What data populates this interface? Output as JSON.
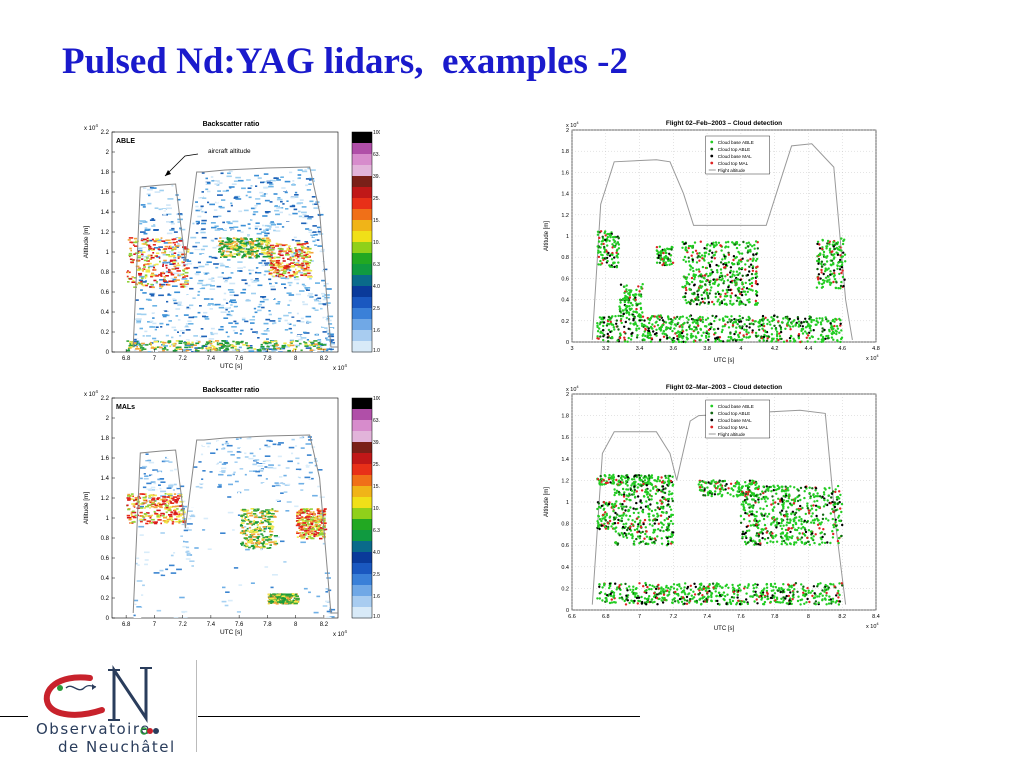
{
  "slide": {
    "title": "Pulsed Nd:YAG lidars,  examples -2"
  },
  "colors": {
    "title": "#1a1acc",
    "able_green": "#22cc22",
    "able_darkgreen": "#116611",
    "mal_black": "#000000",
    "mal_red": "#dd2222",
    "flight_altitude": "#999999"
  },
  "colorbar_ticks": [
    "100.0",
    "63.1",
    "39.8",
    "25.1",
    "15.8",
    "10.0",
    "6.3",
    "4.0",
    "2.5",
    "1.6",
    "1.0"
  ],
  "panel_able": {
    "title": "Backscatter ratio",
    "label": "ABLE",
    "annotation": "aircraft altitude",
    "ylabel": "Altitude [m]",
    "xlabel": "UTC [s]",
    "x_exponent": "x 10",
    "x_exponent_sup": "4",
    "y_exponent": "x 10",
    "y_exponent_sup": "4",
    "xticks": [
      "6.8",
      "7",
      "7.2",
      "7.4",
      "7.6",
      "7.8",
      "8",
      "8.2"
    ],
    "yticks": [
      "0",
      "0.2",
      "0.4",
      "0.6",
      "0.8",
      "1",
      "1.2",
      "1.4",
      "1.6",
      "1.8",
      "2",
      "2.2"
    ]
  },
  "panel_mal": {
    "title": "Backscatter ratio",
    "label": "MALs",
    "ylabel": "Altitude [m]",
    "xlabel": "UTC [s]",
    "x_exponent": "x 10",
    "x_exponent_sup": "4",
    "y_exponent": "x 10",
    "y_exponent_sup": "4",
    "xticks": [
      "6.8",
      "7",
      "7.2",
      "7.4",
      "7.6",
      "7.8",
      "8",
      "8.2"
    ],
    "yticks": [
      "0",
      "0.2",
      "0.4",
      "0.6",
      "0.8",
      "1",
      "1.2",
      "1.4",
      "1.6",
      "1.8",
      "2",
      "2.2"
    ]
  },
  "legend": [
    "Cloud base ABLE",
    "Cloud top ABLE",
    "Cloud base MAL",
    "Cloud top MAL",
    "Flight altitude"
  ],
  "chart_data": [
    {
      "type": "heatmap",
      "title": "Backscatter ratio",
      "label": "ABLE",
      "xlabel": "UTC [s]",
      "ylabel": "Altitude [m]",
      "xlim": [
        6.7,
        8.3
      ],
      "ylim": [
        0,
        2.2
      ],
      "x_scale_note": "x 10^4",
      "colorbar": {
        "scale": "log",
        "values": [
          100.0,
          63.1,
          39.8,
          25.1,
          15.8,
          10.0,
          6.3,
          4.0,
          2.5,
          1.6,
          1.0
        ]
      },
      "flight_altitude": {
        "x": [
          6.85,
          6.9,
          7.05,
          7.15,
          7.22,
          7.3,
          7.35,
          7.5,
          7.8,
          8.1,
          8.17,
          8.25,
          8.3
        ],
        "y": [
          0.05,
          1.65,
          1.67,
          1.68,
          0.9,
          1.8,
          1.8,
          1.82,
          1.84,
          1.85,
          1.4,
          0.05,
          0.05
        ]
      },
      "cloud_regions": [
        {
          "x0": 6.8,
          "x1": 7.23,
          "y0": 0.65,
          "y1": 1.15,
          "level": "high"
        },
        {
          "x0": 7.8,
          "x1": 8.1,
          "y0": 0.75,
          "y1": 1.1,
          "level": "high"
        },
        {
          "x0": 7.45,
          "x1": 7.8,
          "y0": 0.95,
          "y1": 1.15,
          "level": "mid"
        },
        {
          "x0": 6.8,
          "x1": 8.2,
          "y0": 0.02,
          "y1": 0.12,
          "level": "mid"
        }
      ]
    },
    {
      "type": "heatmap",
      "title": "Backscatter ratio",
      "label": "MALs",
      "xlabel": "UTC [s]",
      "ylabel": "Altitude [m]",
      "xlim": [
        6.7,
        8.3
      ],
      "ylim": [
        0,
        2.2
      ],
      "x_scale_note": "x 10^4",
      "colorbar": {
        "scale": "log",
        "values": [
          100.0,
          63.1,
          39.8,
          25.1,
          15.8,
          10.0,
          6.3,
          4.0,
          2.5,
          1.6,
          1.0
        ]
      },
      "flight_altitude": {
        "x": [
          6.85,
          6.9,
          7.05,
          7.15,
          7.22,
          7.3,
          7.35,
          7.5,
          7.8,
          8.1,
          8.17,
          8.25,
          8.3
        ],
        "y": [
          0.05,
          1.65,
          1.67,
          1.68,
          0.9,
          1.78,
          1.78,
          1.8,
          1.82,
          1.83,
          1.4,
          0.05,
          0.05
        ]
      },
      "cloud_regions": [
        {
          "x0": 6.8,
          "x1": 7.2,
          "y0": 0.95,
          "y1": 1.25,
          "level": "high"
        },
        {
          "x0": 7.6,
          "x1": 7.85,
          "y0": 0.7,
          "y1": 1.1,
          "level": "mid"
        },
        {
          "x0": 8.0,
          "x1": 8.2,
          "y0": 0.8,
          "y1": 1.1,
          "level": "high"
        },
        {
          "x0": 7.8,
          "x1": 8.0,
          "y0": 0.15,
          "y1": 0.25,
          "level": "mid"
        }
      ]
    },
    {
      "type": "scatter",
      "title": "Flight 02–Feb–2003  –  Cloud detection",
      "xlabel": "UTC [s]",
      "ylabel": "Altitude [m]",
      "xlim": [
        3.0,
        4.8
      ],
      "ylim": [
        0,
        2.0
      ],
      "xticks": [
        "3",
        "3.2",
        "3.4",
        "3.6",
        "3.8",
        "4",
        "4.2",
        "4.4",
        "4.6",
        "4.8"
      ],
      "yticks": [
        "0",
        "0.2",
        "0.4",
        "0.6",
        "0.8",
        "1",
        "1.2",
        "1.4",
        "1.6",
        "1.8",
        "2"
      ],
      "x_exponent": "x 10",
      "x_exponent_sup": "4",
      "y_exponent": "x 10",
      "y_exponent_sup": "4",
      "series": [
        {
          "name": "Cloud base ABLE",
          "color": "#22cc22"
        },
        {
          "name": "Cloud top ABLE",
          "color": "#116611"
        },
        {
          "name": "Cloud base MAL",
          "color": "#000000"
        },
        {
          "name": "Cloud top MAL",
          "color": "#dd2222"
        },
        {
          "name": "Flight altitude",
          "color": "#999999",
          "x": [
            3.12,
            3.17,
            3.25,
            3.5,
            3.58,
            3.66,
            3.72,
            3.95,
            4.15,
            4.22,
            4.3,
            4.42,
            4.55,
            4.62,
            4.66
          ],
          "y": [
            0.02,
            1.3,
            1.7,
            1.72,
            1.7,
            1.4,
            1.1,
            1.1,
            1.1,
            1.45,
            1.85,
            1.87,
            1.65,
            0.4,
            0.02
          ]
        }
      ],
      "clusters": [
        {
          "x0": 3.15,
          "x1": 3.28,
          "y0": 0.7,
          "y1": 1.05
        },
        {
          "x0": 3.28,
          "x1": 3.42,
          "y0": 0.25,
          "y1": 0.55
        },
        {
          "x0": 3.5,
          "x1": 3.6,
          "y0": 0.72,
          "y1": 0.9
        },
        {
          "x0": 3.65,
          "x1": 4.1,
          "y0": 0.35,
          "y1": 0.95
        },
        {
          "x0": 4.45,
          "x1": 4.62,
          "y0": 0.5,
          "y1": 0.98
        },
        {
          "x0": 3.15,
          "x1": 4.6,
          "y0": 0.0,
          "y1": 0.25
        }
      ]
    },
    {
      "type": "scatter",
      "title": "Flight 02–Mar–2003  –  Cloud detection",
      "xlabel": "UTC [s]",
      "ylabel": "Altitude [m]",
      "xlim": [
        6.6,
        8.4
      ],
      "ylim": [
        0,
        2.0
      ],
      "xticks": [
        "6.6",
        "6.8",
        "7",
        "7.2",
        "7.4",
        "7.6",
        "7.8",
        "8",
        "8.2",
        "8.4"
      ],
      "yticks": [
        "0",
        "0.2",
        "0.4",
        "0.6",
        "0.8",
        "1",
        "1.2",
        "1.4",
        "1.6",
        "1.8",
        "2"
      ],
      "x_exponent": "x 10",
      "x_exponent_sup": "4",
      "y_exponent": "x 10",
      "y_exponent_sup": "4",
      "series": [
        {
          "name": "Cloud base ABLE",
          "color": "#22cc22"
        },
        {
          "name": "Cloud top ABLE",
          "color": "#116611"
        },
        {
          "name": "Cloud base MAL",
          "color": "#000000"
        },
        {
          "name": "Cloud top MAL",
          "color": "#dd2222"
        },
        {
          "name": "Flight altitude",
          "color": "#999999",
          "x": [
            6.72,
            6.78,
            6.85,
            7.1,
            7.18,
            7.22,
            7.3,
            7.35,
            7.6,
            7.95,
            8.1,
            8.16,
            8.22
          ],
          "y": [
            0.05,
            1.45,
            1.65,
            1.65,
            1.45,
            1.2,
            1.75,
            1.8,
            1.82,
            1.85,
            1.82,
            0.8,
            0.05
          ]
        }
      ],
      "clusters": [
        {
          "x0": 6.75,
          "x1": 7.2,
          "y0": 1.15,
          "y1": 1.25
        },
        {
          "x0": 6.75,
          "x1": 6.85,
          "y0": 0.75,
          "y1": 1.0
        },
        {
          "x0": 6.85,
          "x1": 7.2,
          "y0": 0.6,
          "y1": 1.2
        },
        {
          "x0": 7.35,
          "x1": 7.7,
          "y0": 1.05,
          "y1": 1.2
        },
        {
          "x0": 7.6,
          "x1": 8.2,
          "y0": 0.6,
          "y1": 1.15
        },
        {
          "x0": 6.75,
          "x1": 8.2,
          "y0": 0.05,
          "y1": 0.25
        }
      ]
    }
  ],
  "logo": {
    "line1": "Observatoire",
    "line2": "de Neuchâtel"
  }
}
